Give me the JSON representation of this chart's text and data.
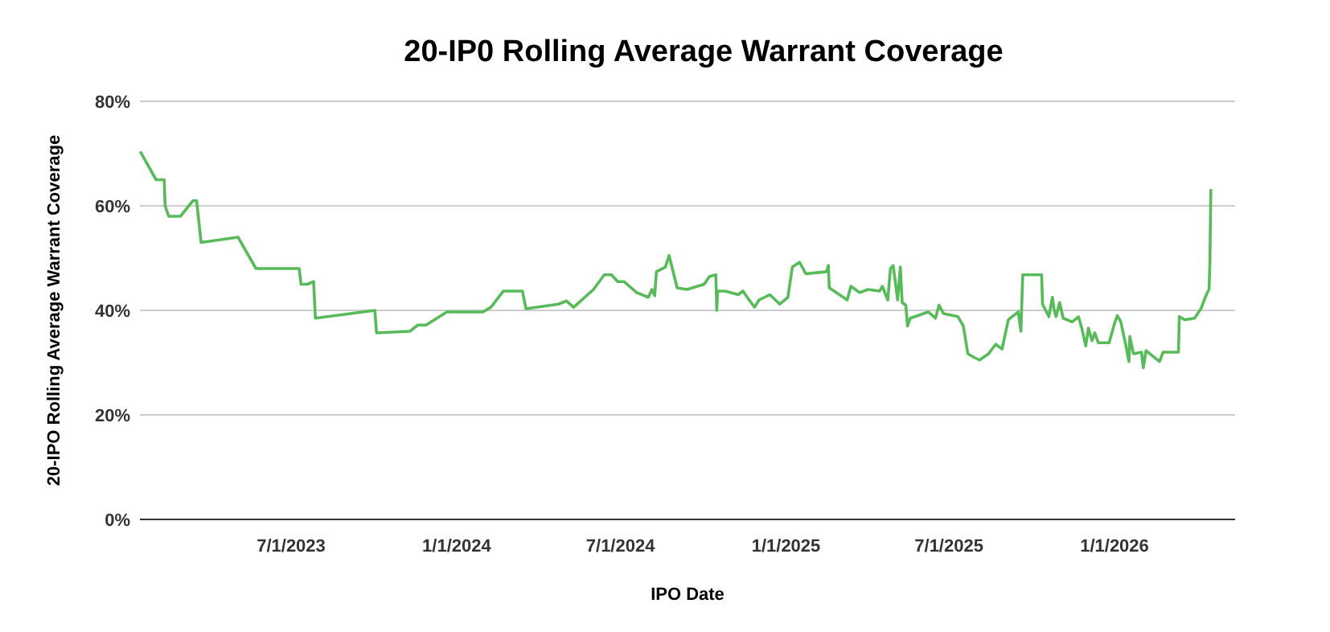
{
  "chart_data": {
    "type": "line",
    "title": "20-IP0 Rolling Average Warrant Coverage",
    "xlabel": "IPO Date",
    "ylabel": "20-IPO Rolling Average Warrant Coverage",
    "grid": "y",
    "marker": "none",
    "line_style": "solid",
    "xlim": [
      "2023-01-14",
      "2026-05-15"
    ],
    "xticks": [
      {
        "value": "2023-07-01",
        "label": "7/1/2023"
      },
      {
        "value": "2024-01-01",
        "label": "1/1/2024"
      },
      {
        "value": "2024-07-01",
        "label": "7/1/2024"
      },
      {
        "value": "2025-01-01",
        "label": "1/1/2025"
      },
      {
        "value": "2025-07-01",
        "label": "7/1/2025"
      },
      {
        "value": "2026-01-01",
        "label": "1/1/2026"
      }
    ],
    "ylim": [
      0,
      80
    ],
    "yticks": [
      {
        "value": 0,
        "label": "0%"
      },
      {
        "value": 20,
        "label": "20%"
      },
      {
        "value": 40,
        "label": "40%"
      },
      {
        "value": 60,
        "label": "60%"
      },
      {
        "value": 80,
        "label": "80%"
      }
    ],
    "x": [
      "2023-01-15",
      "2023-02-01",
      "2023-02-10",
      "2023-02-11",
      "2023-02-15",
      "2023-02-28",
      "2023-03-14",
      "2023-03-18",
      "2023-03-23",
      "2023-05-03",
      "2023-05-23",
      "2023-07-10",
      "2023-07-12",
      "2023-07-19",
      "2023-07-26",
      "2023-07-28",
      "2023-10-02",
      "2023-10-04",
      "2023-11-10",
      "2023-11-19",
      "2023-11-28",
      "2023-12-21",
      "2024-01-30",
      "2024-02-08",
      "2024-02-22",
      "2024-03-14",
      "2024-03-18",
      "2024-04-23",
      "2024-05-02",
      "2024-05-10",
      "2024-06-01",
      "2024-06-13",
      "2024-06-21",
      "2024-06-28",
      "2024-07-05",
      "2024-07-19",
      "2024-08-01",
      "2024-08-05",
      "2024-08-08",
      "2024-08-10",
      "2024-08-20",
      "2024-08-24",
      "2024-09-02",
      "2024-09-13",
      "2024-10-02",
      "2024-10-08",
      "2024-10-15",
      "2024-10-16",
      "2024-10-17",
      "2024-10-25",
      "2024-11-09",
      "2024-11-14",
      "2024-11-21",
      "2024-11-27",
      "2024-12-02",
      "2024-12-14",
      "2024-12-25",
      "2025-01-03",
      "2025-01-08",
      "2025-01-16",
      "2025-01-23",
      "2025-02-15",
      "2025-02-17",
      "2025-02-18",
      "2025-03-10",
      "2025-03-14",
      "2025-03-24",
      "2025-04-02",
      "2025-04-15",
      "2025-04-18",
      "2025-04-24",
      "2025-04-27",
      "2025-04-30",
      "2025-05-05",
      "2025-05-08",
      "2025-05-10",
      "2025-05-14",
      "2025-05-16",
      "2025-05-19",
      "2025-06-08",
      "2025-06-16",
      "2025-06-20",
      "2025-06-25",
      "2025-07-11",
      "2025-07-17",
      "2025-07-22",
      "2025-07-29",
      "2025-08-04",
      "2025-08-14",
      "2025-08-22",
      "2025-08-29",
      "2025-09-05",
      "2025-09-16",
      "2025-09-19",
      "2025-09-21",
      "2025-10-12",
      "2025-10-13",
      "2025-10-20",
      "2025-10-24",
      "2025-10-26",
      "2025-10-28",
      "2025-11-01",
      "2025-11-05",
      "2025-11-15",
      "2025-11-22",
      "2025-11-26",
      "2025-11-30",
      "2025-12-03",
      "2025-12-07",
      "2025-12-10",
      "2025-12-14",
      "2025-12-26",
      "2026-01-01",
      "2026-01-04",
      "2026-01-08",
      "2026-01-13",
      "2026-01-17",
      "2026-01-18",
      "2026-01-22",
      "2026-01-31",
      "2026-02-02",
      "2026-02-05",
      "2026-02-20",
      "2026-02-24",
      "2026-03-13",
      "2026-03-14",
      "2026-03-20",
      "2026-03-31",
      "2026-04-07",
      "2026-04-13",
      "2026-04-16",
      "2026-04-17",
      "2026-04-18"
    ],
    "series": [
      {
        "color": "#57bb5a",
        "values": [
          70.2,
          65,
          65,
          60,
          58,
          58,
          61,
          61,
          53,
          54,
          48,
          48,
          45,
          45,
          45.5,
          38.5,
          40,
          35.7,
          36,
          37.2,
          37.2,
          39.7,
          39.7,
          40.6,
          43.7,
          43.7,
          40.3,
          41.2,
          41.8,
          40.6,
          44,
          46.8,
          46.8,
          45.5,
          45.5,
          43.4,
          42.5,
          44,
          42.8,
          47.4,
          48.3,
          50.5,
          44.3,
          44,
          45,
          46.5,
          46.8,
          40,
          43.7,
          43.7,
          43,
          43.7,
          42,
          40.6,
          42,
          43,
          41.2,
          42.5,
          48.3,
          49.2,
          47,
          47.4,
          48.6,
          44.3,
          42,
          44.6,
          43.4,
          44,
          43.7,
          44.6,
          42,
          48,
          48.6,
          42,
          48.3,
          41.5,
          41,
          37,
          38.5,
          39.7,
          38.5,
          41,
          39.4,
          38.8,
          37,
          31.7,
          31,
          30.5,
          31.7,
          33.5,
          32.6,
          38.2,
          39.7,
          36,
          46.8,
          46.8,
          41.2,
          38.8,
          42.5,
          40,
          38.8,
          41.5,
          38.5,
          37.8,
          38.8,
          36.3,
          33.2,
          36.6,
          34.2,
          35.7,
          33.8,
          33.8,
          37.5,
          39,
          37.8,
          33.8,
          30.2,
          35,
          31.7,
          32,
          29,
          32.3,
          30.2,
          32,
          32,
          38.8,
          38.2,
          38.5,
          40.3,
          43,
          44,
          49.2,
          63
        ]
      }
    ]
  }
}
